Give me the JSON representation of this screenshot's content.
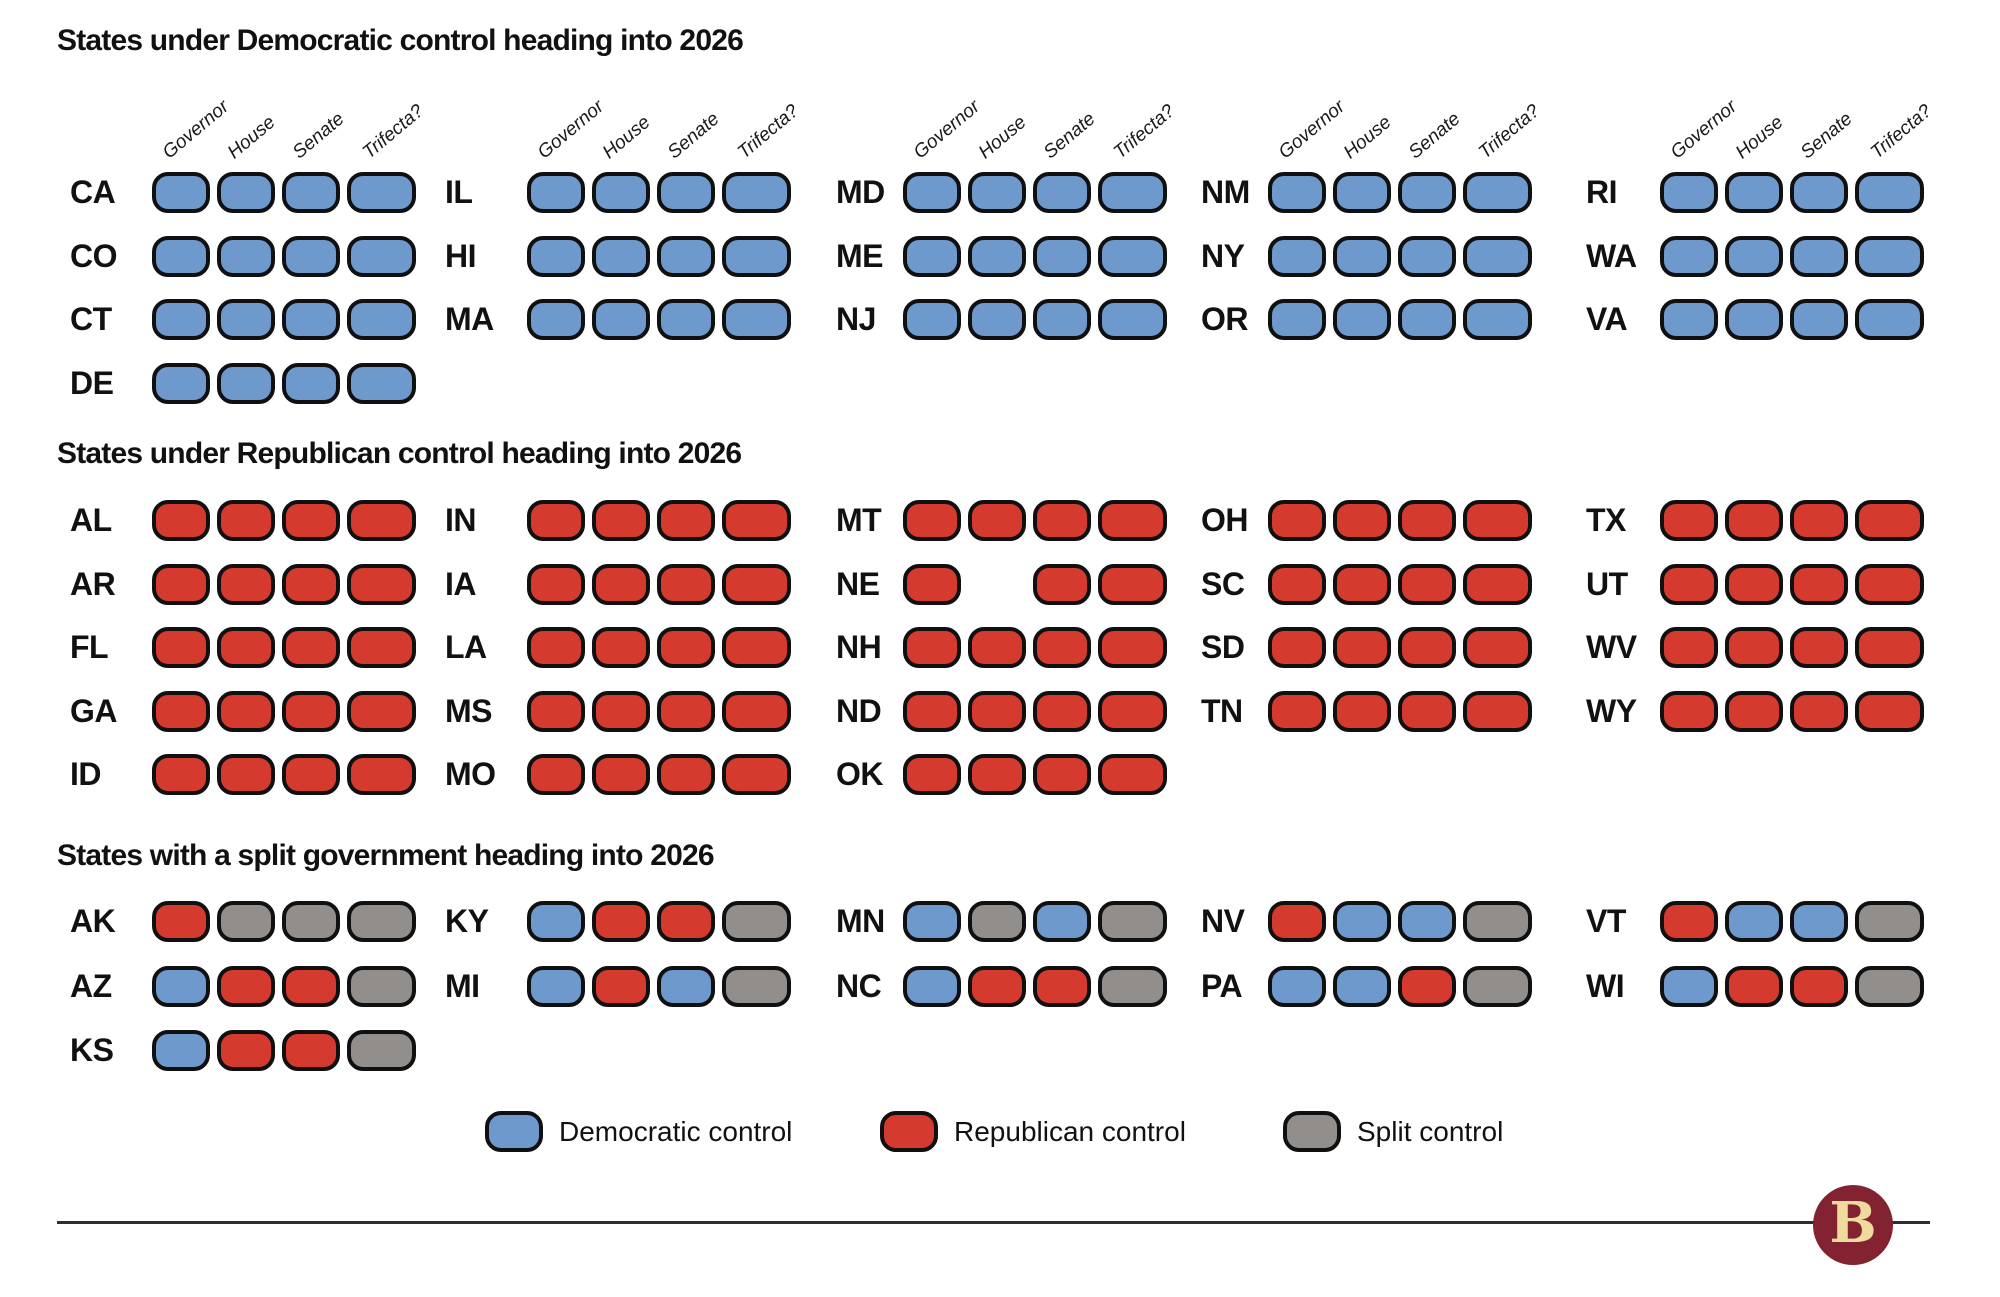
{
  "chart_data": {
    "type": "table",
    "column_headers": [
      "Governor",
      "House",
      "Senate",
      "Trifecta?"
    ],
    "sections": [
      {
        "title": "States under Democratic control heading into 2026",
        "columns": [
          [
            {
              "state": "CA",
              "pills": [
                "D",
                "D",
                "D",
                "D"
              ]
            },
            {
              "state": "CO",
              "pills": [
                "D",
                "D",
                "D",
                "D"
              ]
            },
            {
              "state": "CT",
              "pills": [
                "D",
                "D",
                "D",
                "D"
              ]
            },
            {
              "state": "DE",
              "pills": [
                "D",
                "D",
                "D",
                "D"
              ]
            }
          ],
          [
            {
              "state": "IL",
              "pills": [
                "D",
                "D",
                "D",
                "D"
              ]
            },
            {
              "state": "HI",
              "pills": [
                "D",
                "D",
                "D",
                "D"
              ]
            },
            {
              "state": "MA",
              "pills": [
                "D",
                "D",
                "D",
                "D"
              ]
            }
          ],
          [
            {
              "state": "MD",
              "pills": [
                "D",
                "D",
                "D",
                "D"
              ]
            },
            {
              "state": "ME",
              "pills": [
                "D",
                "D",
                "D",
                "D"
              ]
            },
            {
              "state": "NJ",
              "pills": [
                "D",
                "D",
                "D",
                "D"
              ]
            }
          ],
          [
            {
              "state": "NM",
              "pills": [
                "D",
                "D",
                "D",
                "D"
              ]
            },
            {
              "state": "NY",
              "pills": [
                "D",
                "D",
                "D",
                "D"
              ]
            },
            {
              "state": "OR",
              "pills": [
                "D",
                "D",
                "D",
                "D"
              ]
            }
          ],
          [
            {
              "state": "RI",
              "pills": [
                "D",
                "D",
                "D",
                "D"
              ]
            },
            {
              "state": "WA",
              "pills": [
                "D",
                "D",
                "D",
                "D"
              ]
            },
            {
              "state": "VA",
              "pills": [
                "D",
                "D",
                "D",
                "D"
              ]
            }
          ]
        ]
      },
      {
        "title": "States under Republican control heading into 2026",
        "columns": [
          [
            {
              "state": "AL",
              "pills": [
                "R",
                "R",
                "R",
                "R"
              ]
            },
            {
              "state": "AR",
              "pills": [
                "R",
                "R",
                "R",
                "R"
              ]
            },
            {
              "state": "FL",
              "pills": [
                "R",
                "R",
                "R",
                "R"
              ]
            },
            {
              "state": "GA",
              "pills": [
                "R",
                "R",
                "R",
                "R"
              ]
            },
            {
              "state": "ID",
              "pills": [
                "R",
                "R",
                "R",
                "R"
              ]
            }
          ],
          [
            {
              "state": "IN",
              "pills": [
                "R",
                "R",
                "R",
                "R"
              ]
            },
            {
              "state": "IA",
              "pills": [
                "R",
                "R",
                "R",
                "R"
              ]
            },
            {
              "state": "LA",
              "pills": [
                "R",
                "R",
                "R",
                "R"
              ]
            },
            {
              "state": "MS",
              "pills": [
                "R",
                "R",
                "R",
                "R"
              ]
            },
            {
              "state": "MO",
              "pills": [
                "R",
                "R",
                "R",
                "R"
              ]
            }
          ],
          [
            {
              "state": "MT",
              "pills": [
                "R",
                "R",
                "R",
                "R"
              ]
            },
            {
              "state": "NE",
              "pills": [
                "R",
                null,
                "R",
                "R"
              ]
            },
            {
              "state": "NH",
              "pills": [
                "R",
                "R",
                "R",
                "R"
              ]
            },
            {
              "state": "ND",
              "pills": [
                "R",
                "R",
                "R",
                "R"
              ]
            },
            {
              "state": "OK",
              "pills": [
                "R",
                "R",
                "R",
                "R"
              ]
            }
          ],
          [
            {
              "state": "OH",
              "pills": [
                "R",
                "R",
                "R",
                "R"
              ]
            },
            {
              "state": "SC",
              "pills": [
                "R",
                "R",
                "R",
                "R"
              ]
            },
            {
              "state": "SD",
              "pills": [
                "R",
                "R",
                "R",
                "R"
              ]
            },
            {
              "state": "TN",
              "pills": [
                "R",
                "R",
                "R",
                "R"
              ]
            }
          ],
          [
            {
              "state": "TX",
              "pills": [
                "R",
                "R",
                "R",
                "R"
              ]
            },
            {
              "state": "UT",
              "pills": [
                "R",
                "R",
                "R",
                "R"
              ]
            },
            {
              "state": "WV",
              "pills": [
                "R",
                "R",
                "R",
                "R"
              ]
            },
            {
              "state": "WY",
              "pills": [
                "R",
                "R",
                "R",
                "R"
              ]
            }
          ]
        ]
      },
      {
        "title": "States with a split government heading into 2026",
        "columns": [
          [
            {
              "state": "AK",
              "pills": [
                "R",
                "S",
                "S",
                "S"
              ]
            },
            {
              "state": "AZ",
              "pills": [
                "D",
                "R",
                "R",
                "S"
              ]
            },
            {
              "state": "KS",
              "pills": [
                "D",
                "R",
                "R",
                "S"
              ]
            }
          ],
          [
            {
              "state": "KY",
              "pills": [
                "D",
                "R",
                "R",
                "S"
              ]
            },
            {
              "state": "MI",
              "pills": [
                "D",
                "R",
                "D",
                "S"
              ]
            }
          ],
          [
            {
              "state": "MN",
              "pills": [
                "D",
                "S",
                "D",
                "S"
              ]
            },
            {
              "state": "NC",
              "pills": [
                "D",
                "R",
                "R",
                "S"
              ]
            }
          ],
          [
            {
              "state": "NV",
              "pills": [
                "R",
                "D",
                "D",
                "S"
              ]
            },
            {
              "state": "PA",
              "pills": [
                "D",
                "D",
                "R",
                "S"
              ]
            }
          ],
          [
            {
              "state": "VT",
              "pills": [
                "R",
                "D",
                "D",
                "S"
              ]
            },
            {
              "state": "WI",
              "pills": [
                "D",
                "R",
                "R",
                "S"
              ]
            }
          ]
        ]
      }
    ]
  },
  "legend": {
    "items": [
      {
        "key": "D",
        "label": "Democratic control"
      },
      {
        "key": "R",
        "label": "Republican control"
      },
      {
        "key": "S",
        "label": "Split control"
      }
    ]
  },
  "colors": {
    "D": "#6e99cd",
    "R": "#d53a2f",
    "S": "#928e8c",
    "pill_border": "#101010",
    "rule": "#2e2e2e",
    "logo_background": "#832230",
    "logo_letter": "#f0db9e"
  },
  "logo": {
    "letter": "B"
  }
}
